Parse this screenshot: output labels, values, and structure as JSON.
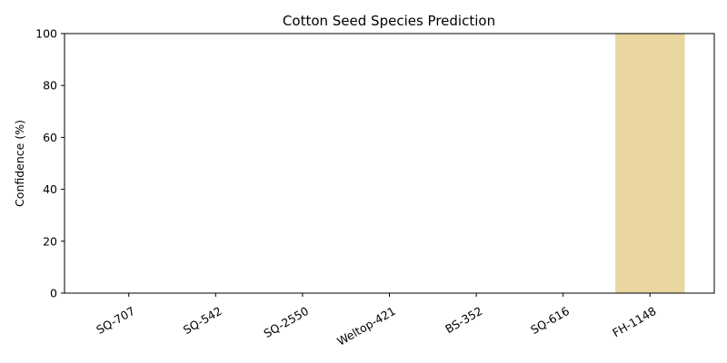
{
  "chart_data": {
    "type": "bar",
    "title": "Cotton Seed Species Prediction",
    "xlabel": "",
    "ylabel": "Confidence (%)",
    "categories": [
      "SQ-707",
      "SQ-542",
      "SQ-2550",
      "Weltop-421",
      "BS-352",
      "SQ-616",
      "FH-1148"
    ],
    "values": [
      0,
      0,
      0,
      0,
      0,
      0,
      100
    ],
    "ylim": [
      0,
      100
    ],
    "yticks": [
      0,
      20,
      40,
      60,
      80,
      100
    ],
    "grid": false,
    "legend": "none",
    "bar_color": "#e9d6a0"
  }
}
